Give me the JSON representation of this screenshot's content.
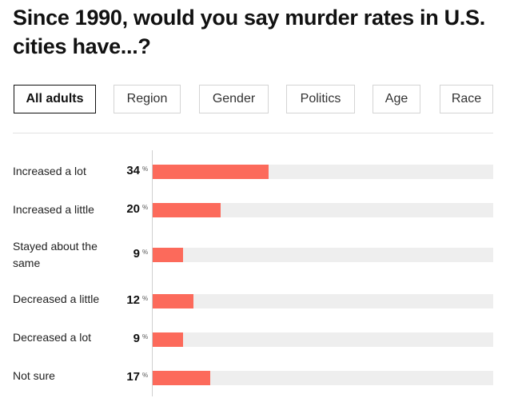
{
  "title": "Since 1990, would you say murder rates in U.S. cities have...?",
  "tabs": [
    {
      "label": "All adults",
      "active": true
    },
    {
      "label": "Region",
      "active": false
    },
    {
      "label": "Gender",
      "active": false
    },
    {
      "label": "Politics",
      "active": false
    },
    {
      "label": "Age",
      "active": false
    },
    {
      "label": "Race",
      "active": false
    }
  ],
  "colors": {
    "bar": "#fc6a5b",
    "track": "#eeeeee",
    "active_tab_border": "#111111"
  },
  "chart_data": {
    "type": "bar",
    "orientation": "horizontal",
    "categories": [
      "Increased a lot",
      "Increased a little",
      "Stayed about the same",
      "Decreased a little",
      "Decreased a lot",
      "Not sure"
    ],
    "values": [
      34,
      20,
      9,
      12,
      9,
      17
    ],
    "value_suffix": "%",
    "xlim": [
      0,
      100
    ],
    "grid": false
  }
}
